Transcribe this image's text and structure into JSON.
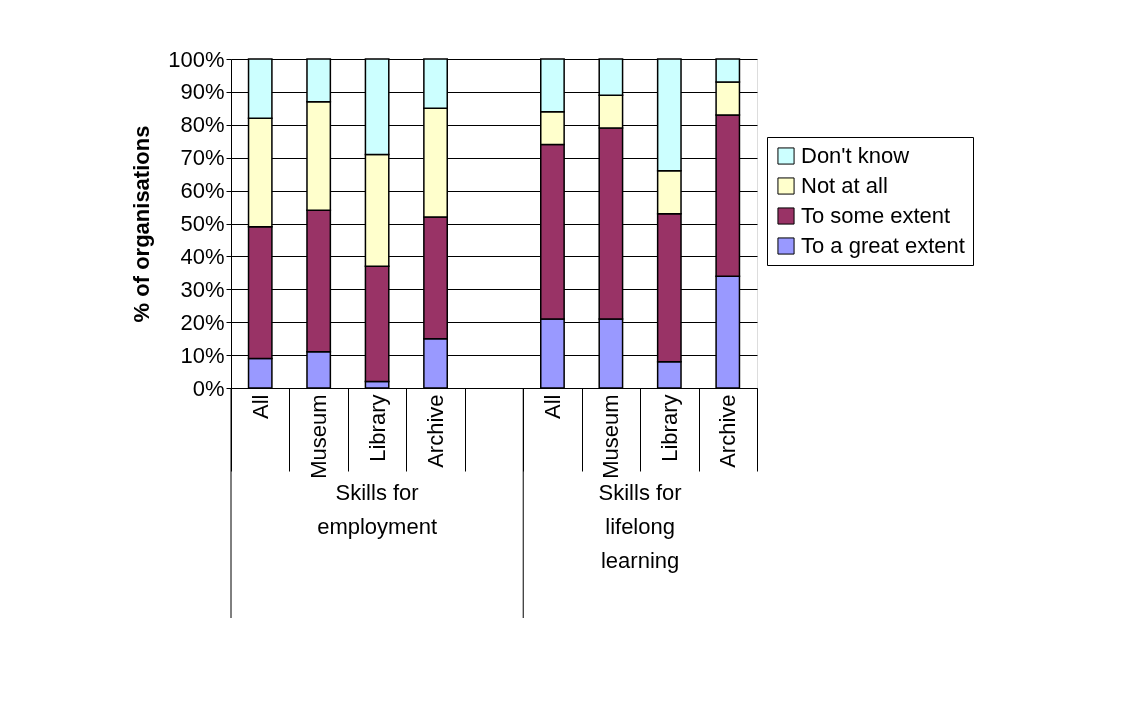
{
  "chart_data": {
    "type": "bar",
    "stacked": true,
    "ylabel": "% of organisations",
    "categories": [
      "All",
      "Museum",
      "Library",
      "Archive",
      null,
      "All",
      "Museum",
      "Library",
      "Archive"
    ],
    "series": [
      {
        "name": "To a great extent",
        "color": "#9999ff",
        "values": [
          9,
          11,
          2,
          15,
          null,
          21,
          21,
          8,
          34
        ]
      },
      {
        "name": "To some extent",
        "color": "#993366",
        "values": [
          40,
          43,
          35,
          37,
          null,
          53,
          58,
          45,
          49
        ]
      },
      {
        "name": "Not at all",
        "color": "#ffffcc",
        "values": [
          33,
          33,
          34,
          33,
          null,
          10,
          10,
          13,
          10
        ]
      },
      {
        "name": "Don't know",
        "color": "#ccffff",
        "values": [
          18,
          13,
          29,
          15,
          null,
          16,
          11,
          34,
          7
        ]
      }
    ],
    "ylim": [
      0,
      100
    ],
    "yticks": [
      {
        "value": 0,
        "label": "0%"
      },
      {
        "value": 10,
        "label": "10%"
      },
      {
        "value": 20,
        "label": "20%"
      },
      {
        "value": 30,
        "label": "30%"
      },
      {
        "value": 40,
        "label": "40%"
      },
      {
        "value": 50,
        "label": "50%"
      },
      {
        "value": 60,
        "label": "60%"
      },
      {
        "value": 70,
        "label": "70%"
      },
      {
        "value": 80,
        "label": "80%"
      },
      {
        "value": 90,
        "label": "90%"
      },
      {
        "value": 100,
        "label": "100%"
      }
    ],
    "grid": "y",
    "legend": "right",
    "annotations": [
      "Skills for employment",
      "Skills for lifelong learning"
    ]
  }
}
